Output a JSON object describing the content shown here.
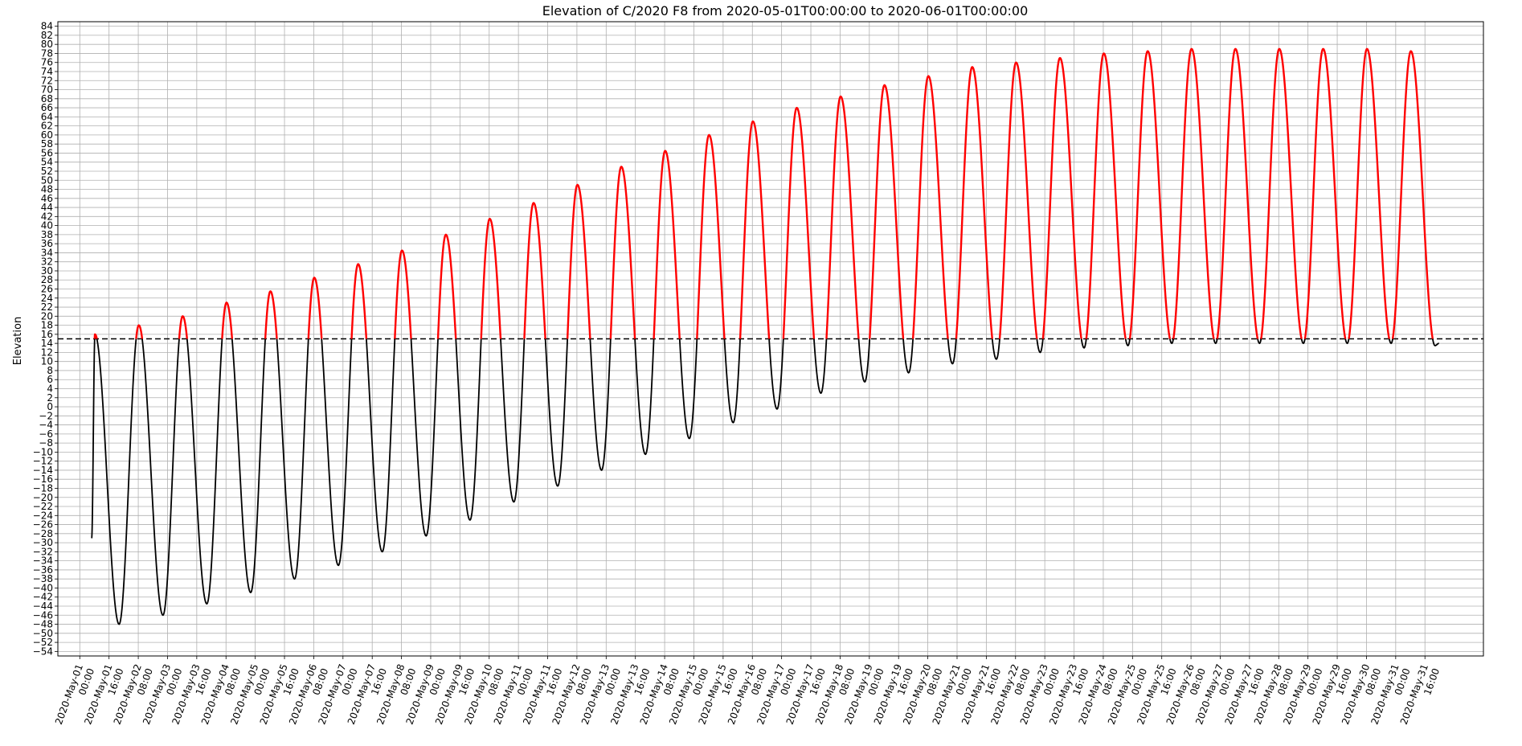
{
  "chart_data": {
    "type": "line",
    "title": "Elevation of C/2020 F8 from 2020-05-01T00:00:00 to 2020-06-01T00:00:00",
    "xlabel": "",
    "ylabel": "Elevation",
    "ylim": [
      -55,
      85
    ],
    "y_ticks": [
      -54,
      -52,
      -50,
      -48,
      -46,
      -44,
      -42,
      -40,
      -38,
      -36,
      -34,
      -32,
      -30,
      -28,
      -26,
      -24,
      -22,
      -20,
      -18,
      -16,
      -14,
      -12,
      -10,
      -8,
      -6,
      -4,
      -2,
      0,
      2,
      4,
      6,
      8,
      10,
      12,
      14,
      16,
      18,
      20,
      22,
      24,
      26,
      28,
      30,
      32,
      34,
      36,
      38,
      40,
      42,
      44,
      46,
      48,
      50,
      52,
      54,
      56,
      58,
      60,
      62,
      64,
      66,
      68,
      70,
      72,
      74,
      76,
      78,
      80,
      82,
      84
    ],
    "x_range_hours": [
      -12,
      768
    ],
    "x_tick_labels": [
      "2020-May-01\n00:00",
      "2020-May-01\n16:00",
      "2020-May-02\n08:00",
      "2020-May-03\n00:00",
      "2020-May-03\n16:00",
      "2020-May-04\n08:00",
      "2020-May-05\n00:00",
      "2020-May-05\n16:00",
      "2020-May-06\n08:00",
      "2020-May-07\n00:00",
      "2020-May-07\n16:00",
      "2020-May-08\n08:00",
      "2020-May-09\n00:00",
      "2020-May-09\n16:00",
      "2020-May-10\n08:00",
      "2020-May-11\n00:00",
      "2020-May-11\n16:00",
      "2020-May-12\n08:00",
      "2020-May-13\n00:00",
      "2020-May-13\n16:00",
      "2020-May-14\n08:00",
      "2020-May-15\n00:00",
      "2020-May-15\n16:00",
      "2020-May-16\n08:00",
      "2020-May-17\n00:00",
      "2020-May-17\n16:00",
      "2020-May-18\n08:00",
      "2020-May-19\n00:00",
      "2020-May-19\n16:00",
      "2020-May-20\n08:00",
      "2020-May-21\n00:00",
      "2020-May-21\n16:00",
      "2020-May-22\n08:00",
      "2020-May-23\n00:00",
      "2020-May-23\n16:00",
      "2020-May-24\n08:00",
      "2020-May-25\n00:00",
      "2020-May-25\n16:00",
      "2020-May-26\n08:00",
      "2020-May-27\n00:00",
      "2020-May-27\n16:00",
      "2020-May-28\n08:00",
      "2020-May-29\n00:00",
      "2020-May-29\n16:00",
      "2020-May-30\n08:00",
      "2020-May-31\n00:00",
      "2020-May-31\n16:00"
    ],
    "threshold": 15,
    "start_value": -29,
    "end_value": 14,
    "day_start_hour": 6.5,
    "daily_peak_hour": 8.3,
    "daily_min_hour": 21.5,
    "peaks": [
      16,
      18,
      20,
      23,
      25.5,
      28.5,
      31.5,
      34.5,
      38,
      41.5,
      45,
      49,
      53,
      56.5,
      60,
      63,
      66,
      68.5,
      71,
      73,
      75,
      76,
      77,
      78,
      78.5,
      79,
      79,
      79,
      79,
      79,
      78.5
    ],
    "minimums": [
      -48,
      -46,
      -43.5,
      -41,
      -38,
      -35,
      -32,
      -28.5,
      -25,
      -21,
      -17.5,
      -14,
      -10.5,
      -7,
      -3.5,
      -0.5,
      3,
      5.5,
      7.5,
      9.5,
      10.5,
      12,
      13,
      13.5,
      14,
      14,
      14,
      14,
      14,
      14,
      13.5
    ],
    "series": [
      {
        "segment": "above",
        "color": "#ff0000"
      },
      {
        "segment": "below",
        "color": "#000000"
      }
    ],
    "grid": true,
    "threshold_color": "#000000"
  }
}
